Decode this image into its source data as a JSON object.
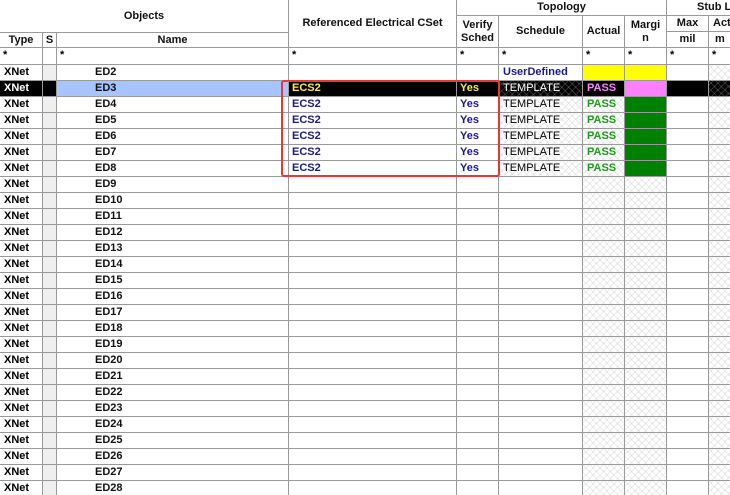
{
  "headers": {
    "objects": "Objects",
    "type": "Type",
    "s": "S",
    "name": "Name",
    "ref_cset": "Referenced Electrical CSet",
    "topology": "Topology",
    "verify_sched": "Verify\nSched",
    "schedule": "Schedule",
    "actual": "Actual",
    "margin": "Margi\nn",
    "stub": "Stub L",
    "max": "Max",
    "max_unit": "mil",
    "act": "Act",
    "act_unit": "m"
  },
  "filter_symbol": "*",
  "colors": {
    "selected_row": "#000000",
    "selected_name": "#a8c4ff",
    "user_defined_yellow": "#ffff00",
    "selected_pink": "#ff80ff",
    "pass_green": "#008000",
    "pass_text_green": "#1a9c1a",
    "pass_text_pink": "#ff80ff",
    "highlight_border": "#e53935"
  },
  "rows": [
    {
      "type": "XNet",
      "name": "ED2",
      "cset": "",
      "verify": "",
      "schedule": "UserDefined",
      "actual": "",
      "style": "userdefined"
    },
    {
      "type": "XNet",
      "name": "ED3",
      "cset": "ECS2",
      "verify": "Yes",
      "schedule": "TEMPLATE",
      "actual": "PASS",
      "style": "selected"
    },
    {
      "type": "XNet",
      "name": "ED4",
      "cset": "ECS2",
      "verify": "Yes",
      "schedule": "TEMPLATE",
      "actual": "PASS",
      "style": "pass"
    },
    {
      "type": "XNet",
      "name": "ED5",
      "cset": "ECS2",
      "verify": "Yes",
      "schedule": "TEMPLATE",
      "actual": "PASS",
      "style": "pass"
    },
    {
      "type": "XNet",
      "name": "ED6",
      "cset": "ECS2",
      "verify": "Yes",
      "schedule": "TEMPLATE",
      "actual": "PASS",
      "style": "pass"
    },
    {
      "type": "XNet",
      "name": "ED7",
      "cset": "ECS2",
      "verify": "Yes",
      "schedule": "TEMPLATE",
      "actual": "PASS",
      "style": "pass"
    },
    {
      "type": "XNet",
      "name": "ED8",
      "cset": "ECS2",
      "verify": "Yes",
      "schedule": "TEMPLATE",
      "actual": "PASS",
      "style": "pass"
    },
    {
      "type": "XNet",
      "name": "ED9",
      "style": "empty"
    },
    {
      "type": "XNet",
      "name": "ED10",
      "style": "empty"
    },
    {
      "type": "XNet",
      "name": "ED11",
      "style": "empty"
    },
    {
      "type": "XNet",
      "name": "ED12",
      "style": "empty"
    },
    {
      "type": "XNet",
      "name": "ED13",
      "style": "empty"
    },
    {
      "type": "XNet",
      "name": "ED14",
      "style": "empty"
    },
    {
      "type": "XNet",
      "name": "ED15",
      "style": "empty"
    },
    {
      "type": "XNet",
      "name": "ED16",
      "style": "empty"
    },
    {
      "type": "XNet",
      "name": "ED17",
      "style": "empty"
    },
    {
      "type": "XNet",
      "name": "ED18",
      "style": "empty"
    },
    {
      "type": "XNet",
      "name": "ED19",
      "style": "empty"
    },
    {
      "type": "XNet",
      "name": "ED20",
      "style": "empty"
    },
    {
      "type": "XNet",
      "name": "ED21",
      "style": "empty"
    },
    {
      "type": "XNet",
      "name": "ED22",
      "style": "empty"
    },
    {
      "type": "XNet",
      "name": "ED23",
      "style": "empty"
    },
    {
      "type": "XNet",
      "name": "ED24",
      "style": "empty"
    },
    {
      "type": "XNet",
      "name": "ED25",
      "style": "empty"
    },
    {
      "type": "XNet",
      "name": "ED26",
      "style": "empty"
    },
    {
      "type": "XNet",
      "name": "ED27",
      "style": "empty"
    },
    {
      "type": "XNet",
      "name": "ED28",
      "style": "empty"
    }
  ]
}
